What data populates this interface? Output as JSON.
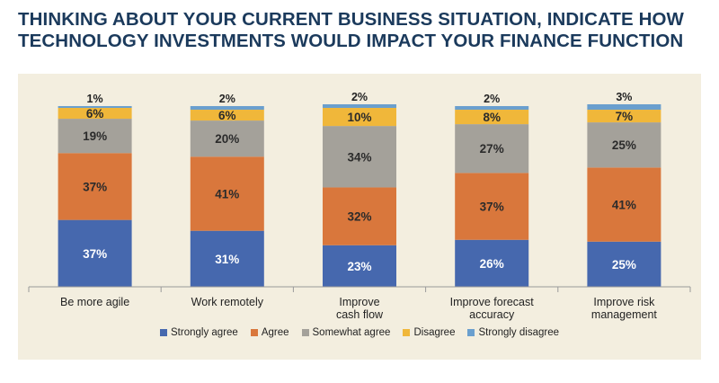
{
  "title": {
    "line1": "THINKING ABOUT YOUR CURRENT BUSINESS SITUATION, INDICATE HOW",
    "line2": "TECHNOLOGY INVESTMENTS WOULD IMPACT YOUR FINANCE FUNCTION"
  },
  "colors": {
    "strongly_agree": "#4668ae",
    "agree": "#d9773c",
    "somewhat_agree": "#a4a19a",
    "disagree": "#f0b73a",
    "strongly_disagree": "#6a9fce",
    "title": "#1b3a5c",
    "panel": "#f3eedf"
  },
  "chart_data": {
    "type": "bar",
    "stacked": true,
    "categories": [
      [
        "Be more agile"
      ],
      [
        "Work remotely"
      ],
      [
        "Improve",
        "cash flow"
      ],
      [
        "Improve forecast",
        "accuracy"
      ],
      [
        "Improve risk",
        "management"
      ]
    ],
    "series": [
      {
        "key": "strongly_agree",
        "name": "Strongly agree",
        "values": [
          37,
          31,
          23,
          26,
          25
        ]
      },
      {
        "key": "agree",
        "name": "Agree",
        "values": [
          37,
          41,
          32,
          37,
          41
        ]
      },
      {
        "key": "somewhat_agree",
        "name": "Somewhat agree",
        "values": [
          19,
          20,
          34,
          27,
          25
        ]
      },
      {
        "key": "disagree",
        "name": "Disagree",
        "values": [
          6,
          6,
          10,
          8,
          7
        ]
      },
      {
        "key": "strongly_disagree",
        "name": "Strongly disagree",
        "values": [
          1,
          2,
          2,
          2,
          3
        ]
      }
    ],
    "unit": "%",
    "legend_position": "bottom",
    "ylim": [
      0,
      100
    ]
  }
}
